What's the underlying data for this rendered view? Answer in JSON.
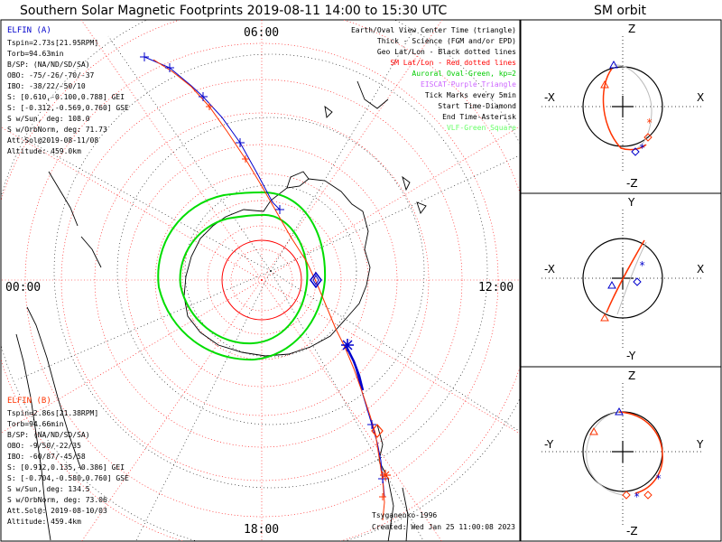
{
  "title": "Southern Solar Magnetic Footprints 2019-08-11 14:00 to 15:30 UTC",
  "orbit_title": "SM orbit",
  "hour_labels": {
    "top": "06:00",
    "left": "00:00",
    "right": "12:00",
    "bottom": "18:00"
  },
  "elfin_a": {
    "name": "ELFIN (A)",
    "color": "#0000cc",
    "lines": [
      "Tspin=2.73s[21.95RPM]",
      "Torb=94.63min",
      "B/SP: (NA/ND/SD/SA)",
      "OBO: -75/-26/-70/-37",
      "IBO: -38/22/-50/10",
      "S: [0.610,-0.100,0.788] GEI",
      "S: [-0.312,-0.569,0.760] GSE",
      "S w/Sun, deg: 108.0",
      "S w/OrbNorm, deg: 71.73",
      "Att.Sol@2019-08-11/08",
      "Altitude: 459.0km"
    ]
  },
  "elfin_b": {
    "name": "ELFIN (B)",
    "color": "#ff3300",
    "lines": [
      "Tspin=2.86s[21.38RPM]",
      "Torb=94.66min",
      "B/SP: (NA/ND/SD/SA)",
      "OBO: -9/50/-22/35",
      "IBO: -60/87/-45/58",
      "S: [0.912,0.135,-0.386] GEI",
      "S: [-0.704,-0.580,0.760] GSE",
      "S w/Sun, deg: 134.5",
      "S w/OrbNorm, deg: 73.06",
      "Att.Sol@: 2019-08-10/03",
      "Altitude: 459.4km"
    ]
  },
  "legend": [
    {
      "text": "Earth/Oval View Center Time (triangle)",
      "color": "#000000"
    },
    {
      "text": "Thick - Science (FGM and/or EPD)",
      "color": "#000000"
    },
    {
      "text": "Geo Lat/Lon - Black dotted lines",
      "color": "#000000"
    },
    {
      "text": "SM Lat/Lon - Red dotted lines",
      "color": "#ff0000"
    },
    {
      "text": "Auroral Oval-Green, kp=2",
      "color": "#00cc00"
    },
    {
      "text": "EISCAT-Purple Triangle",
      "color": "#cc66ff"
    },
    {
      "text": "Tick Marks every 5min",
      "color": "#000000"
    },
    {
      "text": "Start Time-Diamond",
      "color": "#000000"
    },
    {
      "text": "End Time-Asterisk",
      "color": "#000000"
    },
    {
      "text": "VLF-Green Square",
      "color": "#66ff66"
    }
  ],
  "credit": "Tsyganenko-1996",
  "created": "Created: Wed Jan 25 11:00:08 2023",
  "orbit_panels": [
    {
      "top": "Z",
      "bottom": "-Z",
      "left": "-X",
      "right": "X"
    },
    {
      "top": "Y",
      "bottom": "-Y",
      "left": "-X",
      "right": "X"
    },
    {
      "top": "Z",
      "bottom": "-Z",
      "left": "-Y",
      "right": "Y"
    }
  ]
}
